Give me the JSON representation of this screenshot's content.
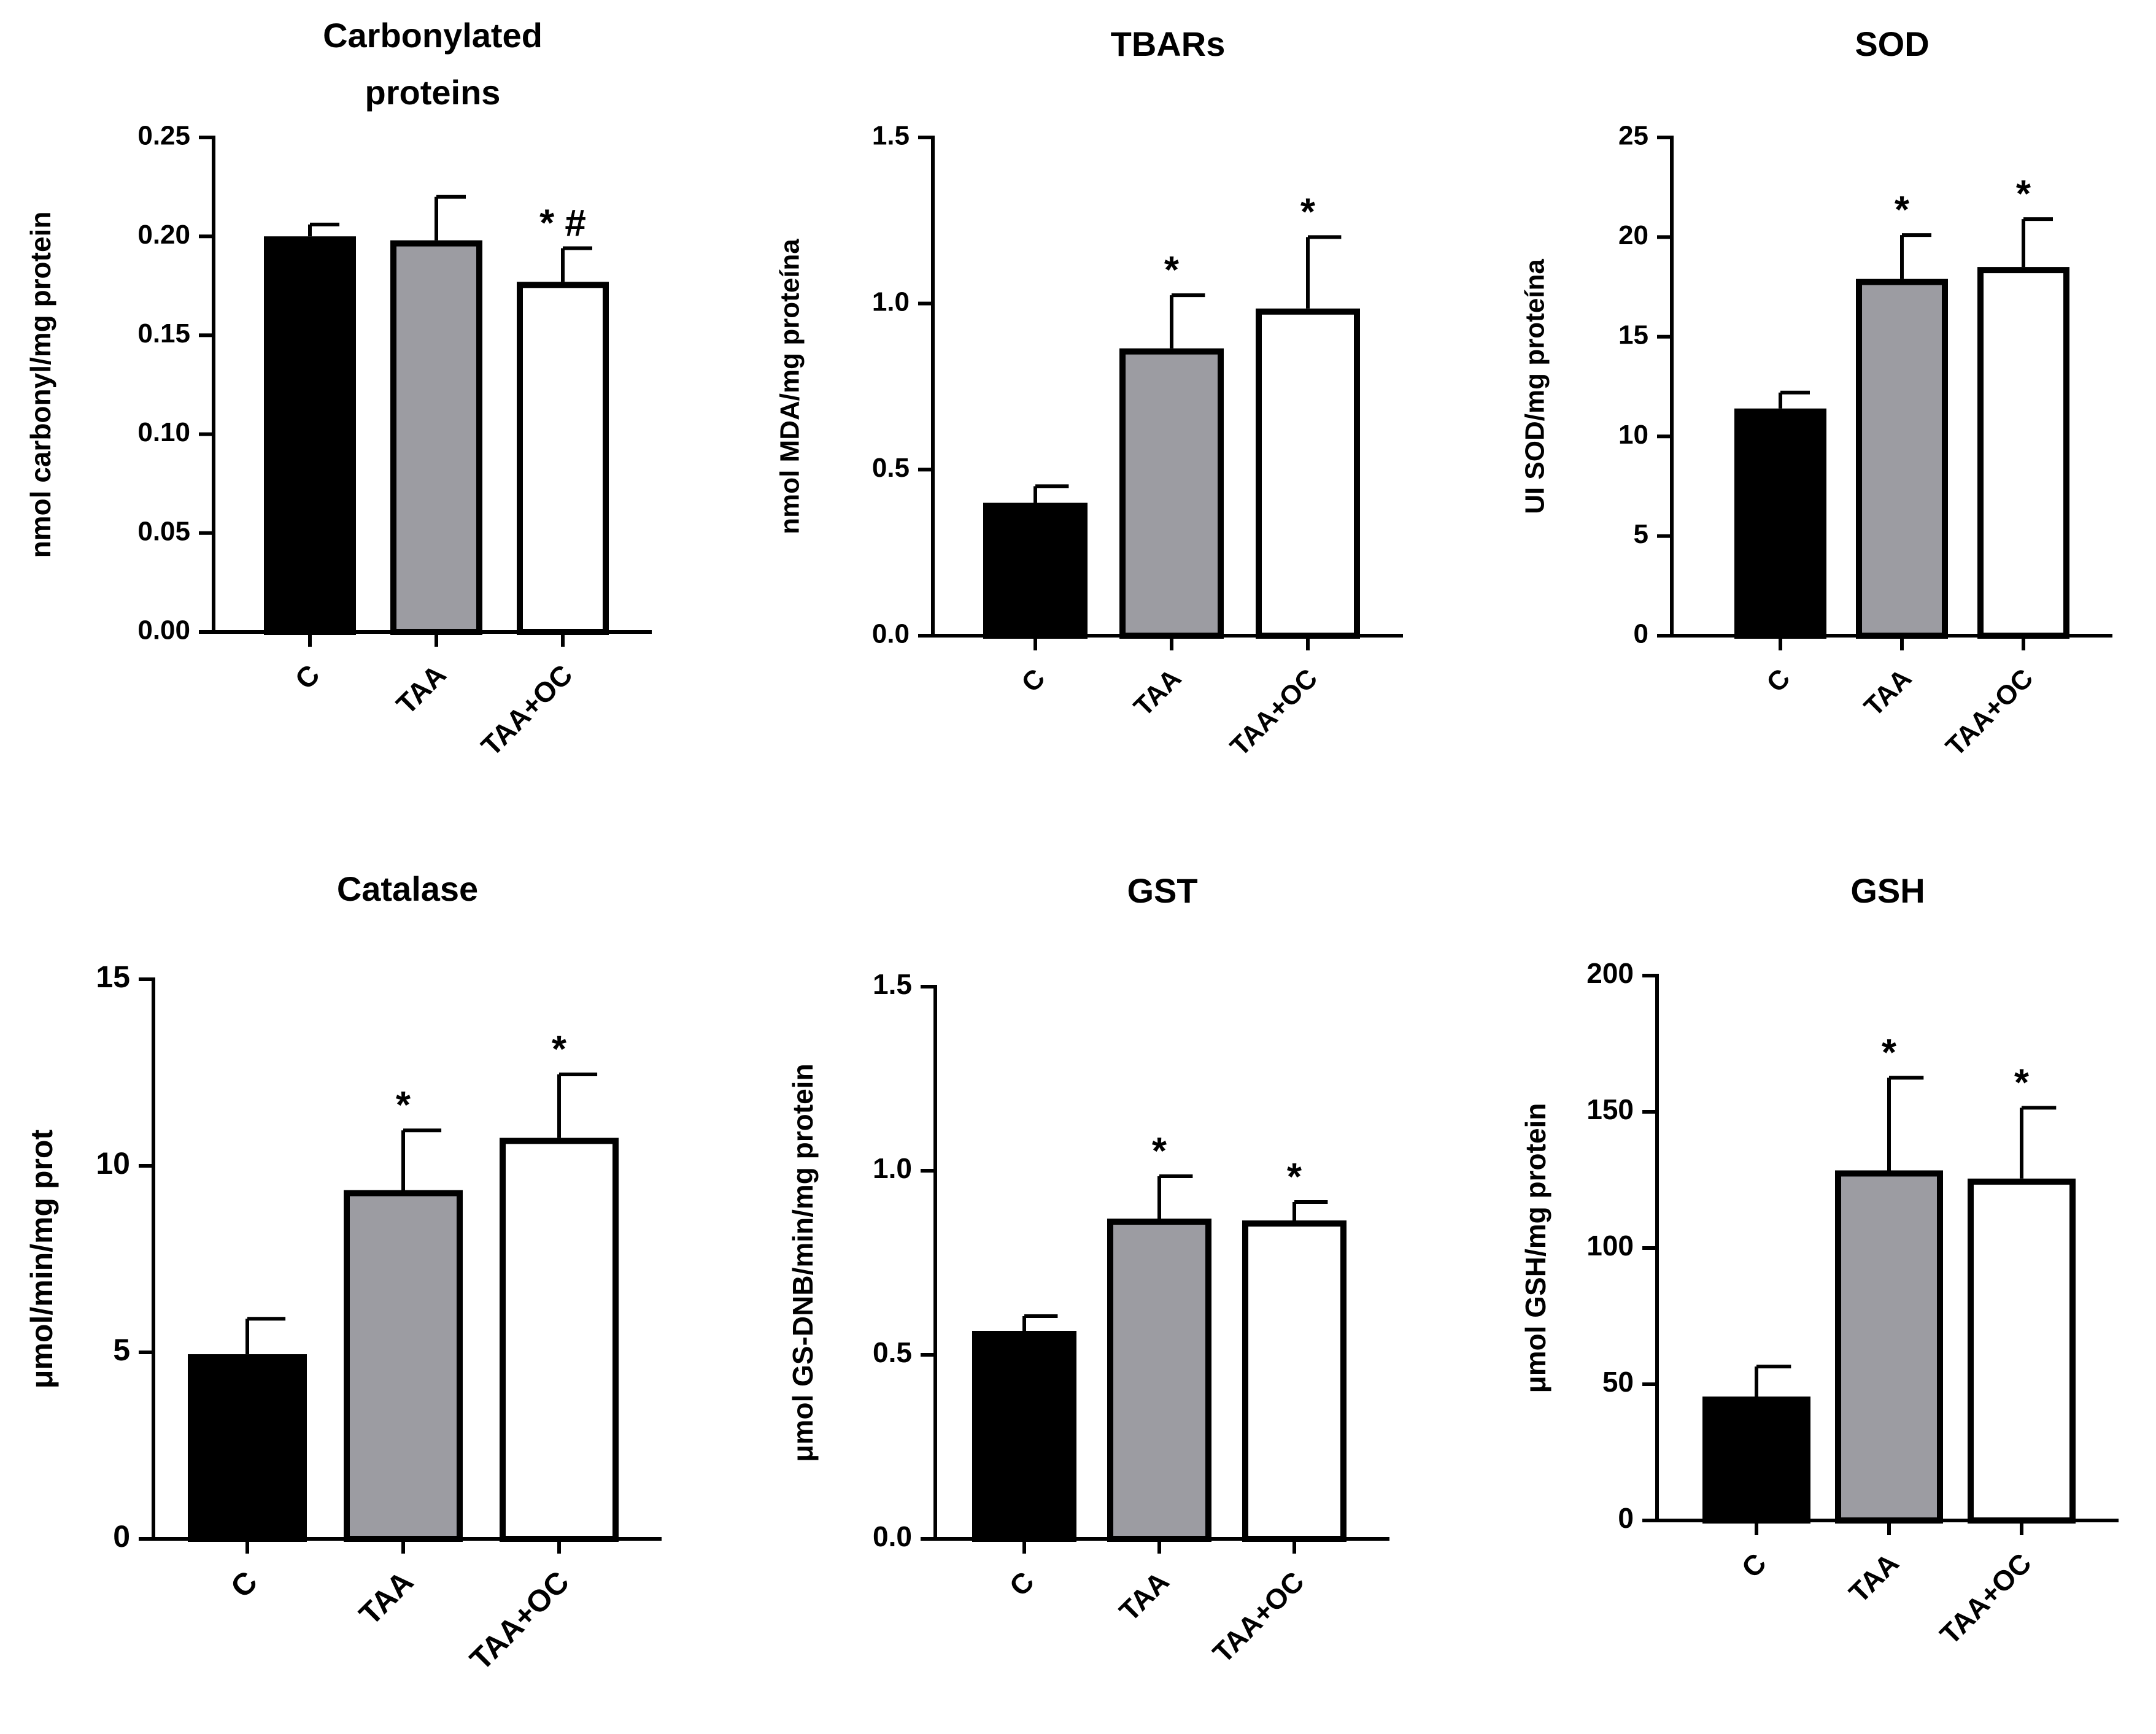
{
  "chart_data": [
    {
      "type": "bar",
      "title": "Carbonylated proteins",
      "title_lines": [
        "Carbonylated",
        "proteins"
      ],
      "ylabel": "nmol carbonyl/mg protein",
      "xlabel": "",
      "categories": [
        "C",
        "TAA",
        "TAA+OC"
      ],
      "values": [
        0.2,
        0.198,
        0.177
      ],
      "errors": [
        0.006,
        0.022,
        0.017
      ],
      "annotations": [
        "",
        "",
        "* #"
      ],
      "ylim": [
        0,
        0.25
      ],
      "yticks": [
        0,
        0.05,
        0.1,
        0.15,
        0.2,
        0.25
      ],
      "ytick_labels": [
        "0.00",
        "0.05",
        "0.10",
        "0.15",
        "0.20",
        "0.25"
      ],
      "bar_colors": [
        "#000000",
        "#9c9ca2",
        "#ffffff"
      ],
      "grid": false
    },
    {
      "type": "bar",
      "title": "TBARs",
      "title_lines": [
        "TBARs"
      ],
      "ylabel": "nmol MDA/mg proteína",
      "xlabel": "",
      "categories": [
        "C",
        "TAA",
        "TAA+OC"
      ],
      "values": [
        0.4,
        0.865,
        0.985
      ],
      "errors": [
        0.05,
        0.16,
        0.215
      ],
      "annotations": [
        "",
        "*",
        "*"
      ],
      "ylim": [
        0,
        1.5
      ],
      "yticks": [
        0,
        0.5,
        1,
        1.5
      ],
      "ytick_labels": [
        "0.0",
        "0.5",
        "1.0",
        "1.5"
      ],
      "bar_colors": [
        "#000000",
        "#9c9ca2",
        "#ffffff"
      ],
      "grid": false
    },
    {
      "type": "bar",
      "title": "SOD",
      "title_lines": [
        "SOD"
      ],
      "ylabel": "UI SOD/mg proteína",
      "xlabel": "",
      "categories": [
        "C",
        "TAA",
        "TAA+OC"
      ],
      "values": [
        11.4,
        17.9,
        18.5
      ],
      "errors": [
        0.8,
        2.2,
        2.4
      ],
      "annotations": [
        "",
        "*",
        "*"
      ],
      "ylim": [
        0,
        25
      ],
      "yticks": [
        0,
        5,
        10,
        15,
        20,
        25
      ],
      "ytick_labels": [
        "0",
        "5",
        "10",
        "15",
        "20",
        "25"
      ],
      "bar_colors": [
        "#000000",
        "#9c9ca2",
        "#ffffff"
      ],
      "grid": false
    },
    {
      "type": "bar",
      "title": "Catalase",
      "title_lines": [
        "Catalase"
      ],
      "ylabel": "μmol/min/mg prot",
      "xlabel": "",
      "categories": [
        "C",
        "TAA",
        "TAA+OC"
      ],
      "values": [
        4.95,
        9.35,
        10.75
      ],
      "errors": [
        0.95,
        1.6,
        1.7
      ],
      "annotations": [
        "",
        "*",
        "*"
      ],
      "ylim": [
        0,
        15
      ],
      "yticks": [
        0,
        5,
        10,
        15
      ],
      "ytick_labels": [
        "0",
        "5",
        "10",
        "15"
      ],
      "bar_colors": [
        "#000000",
        "#9c9ca2",
        "#ffffff"
      ],
      "grid": false
    },
    {
      "type": "bar",
      "title": "GST",
      "title_lines": [
        "GST"
      ],
      "ylabel": "μmol GS-DNB/min/mg protein",
      "xlabel": "",
      "categories": [
        "C",
        "TAA",
        "TAA+OC"
      ],
      "values": [
        0.565,
        0.87,
        0.865
      ],
      "errors": [
        0.04,
        0.115,
        0.05
      ],
      "annotations": [
        "",
        "*",
        "*"
      ],
      "ylim": [
        0,
        1.5
      ],
      "yticks": [
        0,
        0.5,
        1,
        1.5
      ],
      "ytick_labels": [
        "0.0",
        "0.5",
        "1.0",
        "1.5"
      ],
      "bar_colors": [
        "#000000",
        "#9c9ca2",
        "#ffffff"
      ],
      "grid": false
    },
    {
      "type": "bar",
      "title": "GSH",
      "title_lines": [
        "GSH"
      ],
      "ylabel": "μmol GSH/mg protein",
      "xlabel": "",
      "categories": [
        "C",
        "TAA",
        "TAA+OC"
      ],
      "values": [
        45.5,
        128.5,
        125.5
      ],
      "errors": [
        11,
        34,
        26
      ],
      "annotations": [
        "",
        "*",
        "*"
      ],
      "ylim": [
        0,
        200
      ],
      "yticks": [
        0,
        50,
        100,
        150,
        200
      ],
      "ytick_labels": [
        "0",
        "50",
        "100",
        "150",
        "200"
      ],
      "bar_colors": [
        "#000000",
        "#9c9ca2",
        "#ffffff"
      ],
      "grid": false
    }
  ]
}
